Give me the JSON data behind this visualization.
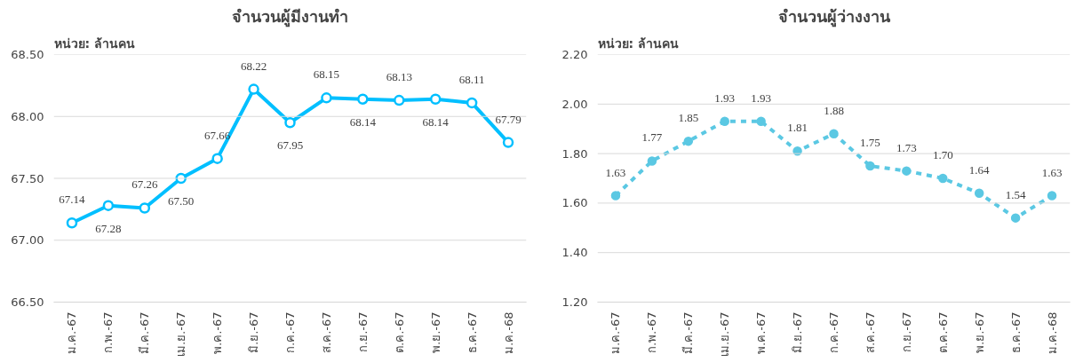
{
  "chart_data": [
    {
      "type": "line",
      "title": "จำนวนผู้มีงานทำ",
      "annotations": [
        "หน่วย: ล้านคน"
      ],
      "categories": [
        "ม.ค.-67",
        "ก.พ.-67",
        "มี.ค.-67",
        "เม.ย.-67",
        "พ.ค.-67",
        "มิ.ย.-67",
        "ก.ค.-67",
        "ส.ค.-67",
        "ก.ย.-67",
        "ต.ค.-67",
        "พ.ย.-67",
        "ธ.ค.-67",
        "ม.ค.-68"
      ],
      "series": [
        {
          "color": "#00bfff",
          "values": [
            67.14,
            67.28,
            67.26,
            67.5,
            67.66,
            68.22,
            67.95,
            68.15,
            68.14,
            68.13,
            68.14,
            68.11,
            67.79
          ]
        }
      ],
      "value_labels": [
        "67.14",
        "67.28",
        "67.26",
        "67.50",
        "67.66",
        "68.22",
        "67.95",
        "68.15",
        "68.14",
        "68.13",
        "68.14",
        "68.11",
        "67.79"
      ],
      "ylim": [
        66.5,
        68.5
      ],
      "yticks": [
        {
          "value": 66.5,
          "label": "66.50"
        },
        {
          "value": 67.0,
          "label": "67.00"
        },
        {
          "value": 67.5,
          "label": "67.50"
        },
        {
          "value": 68.0,
          "label": "68.00"
        },
        {
          "value": 68.5,
          "label": "68.50"
        }
      ],
      "grid": "y",
      "marker": "circle",
      "line_style": "solid"
    },
    {
      "type": "line",
      "title": "จำนวนผู้ว่างงาน",
      "annotations": [
        "หน่วย: ล้านคน"
      ],
      "categories": [
        "ม.ค.-67",
        "ก.พ.-67",
        "มี.ค.-67",
        "เม.ย.-67",
        "พ.ค.-67",
        "มิ.ย.-67",
        "ก.ค.-67",
        "ส.ค.-67",
        "ก.ย.-67",
        "ต.ค.-67",
        "พ.ย.-67",
        "ธ.ค.-67",
        "ม.ค.-68"
      ],
      "series": [
        {
          "color": "#5bc8e3",
          "values": [
            1.63,
            1.77,
            1.85,
            1.93,
            1.93,
            1.81,
            1.88,
            1.75,
            1.73,
            1.7,
            1.64,
            1.54,
            1.63
          ]
        }
      ],
      "value_labels": [
        "1.63",
        "1.77",
        "1.85",
        "1.93",
        "1.93",
        "1.81",
        "1.88",
        "1.75",
        "1.73",
        "1.70",
        "1.64",
        "1.54",
        "1.63"
      ],
      "ylim": [
        1.2,
        2.2
      ],
      "yticks": [
        {
          "value": 1.2,
          "label": "1.20"
        },
        {
          "value": 1.4,
          "label": "1.40"
        },
        {
          "value": 1.6,
          "label": "1.60"
        },
        {
          "value": 1.8,
          "label": "1.80"
        },
        {
          "value": 2.0,
          "label": "2.00"
        },
        {
          "value": 2.2,
          "label": "2.20"
        }
      ],
      "grid": "y",
      "marker": "circle",
      "line_style": "dashed"
    }
  ]
}
